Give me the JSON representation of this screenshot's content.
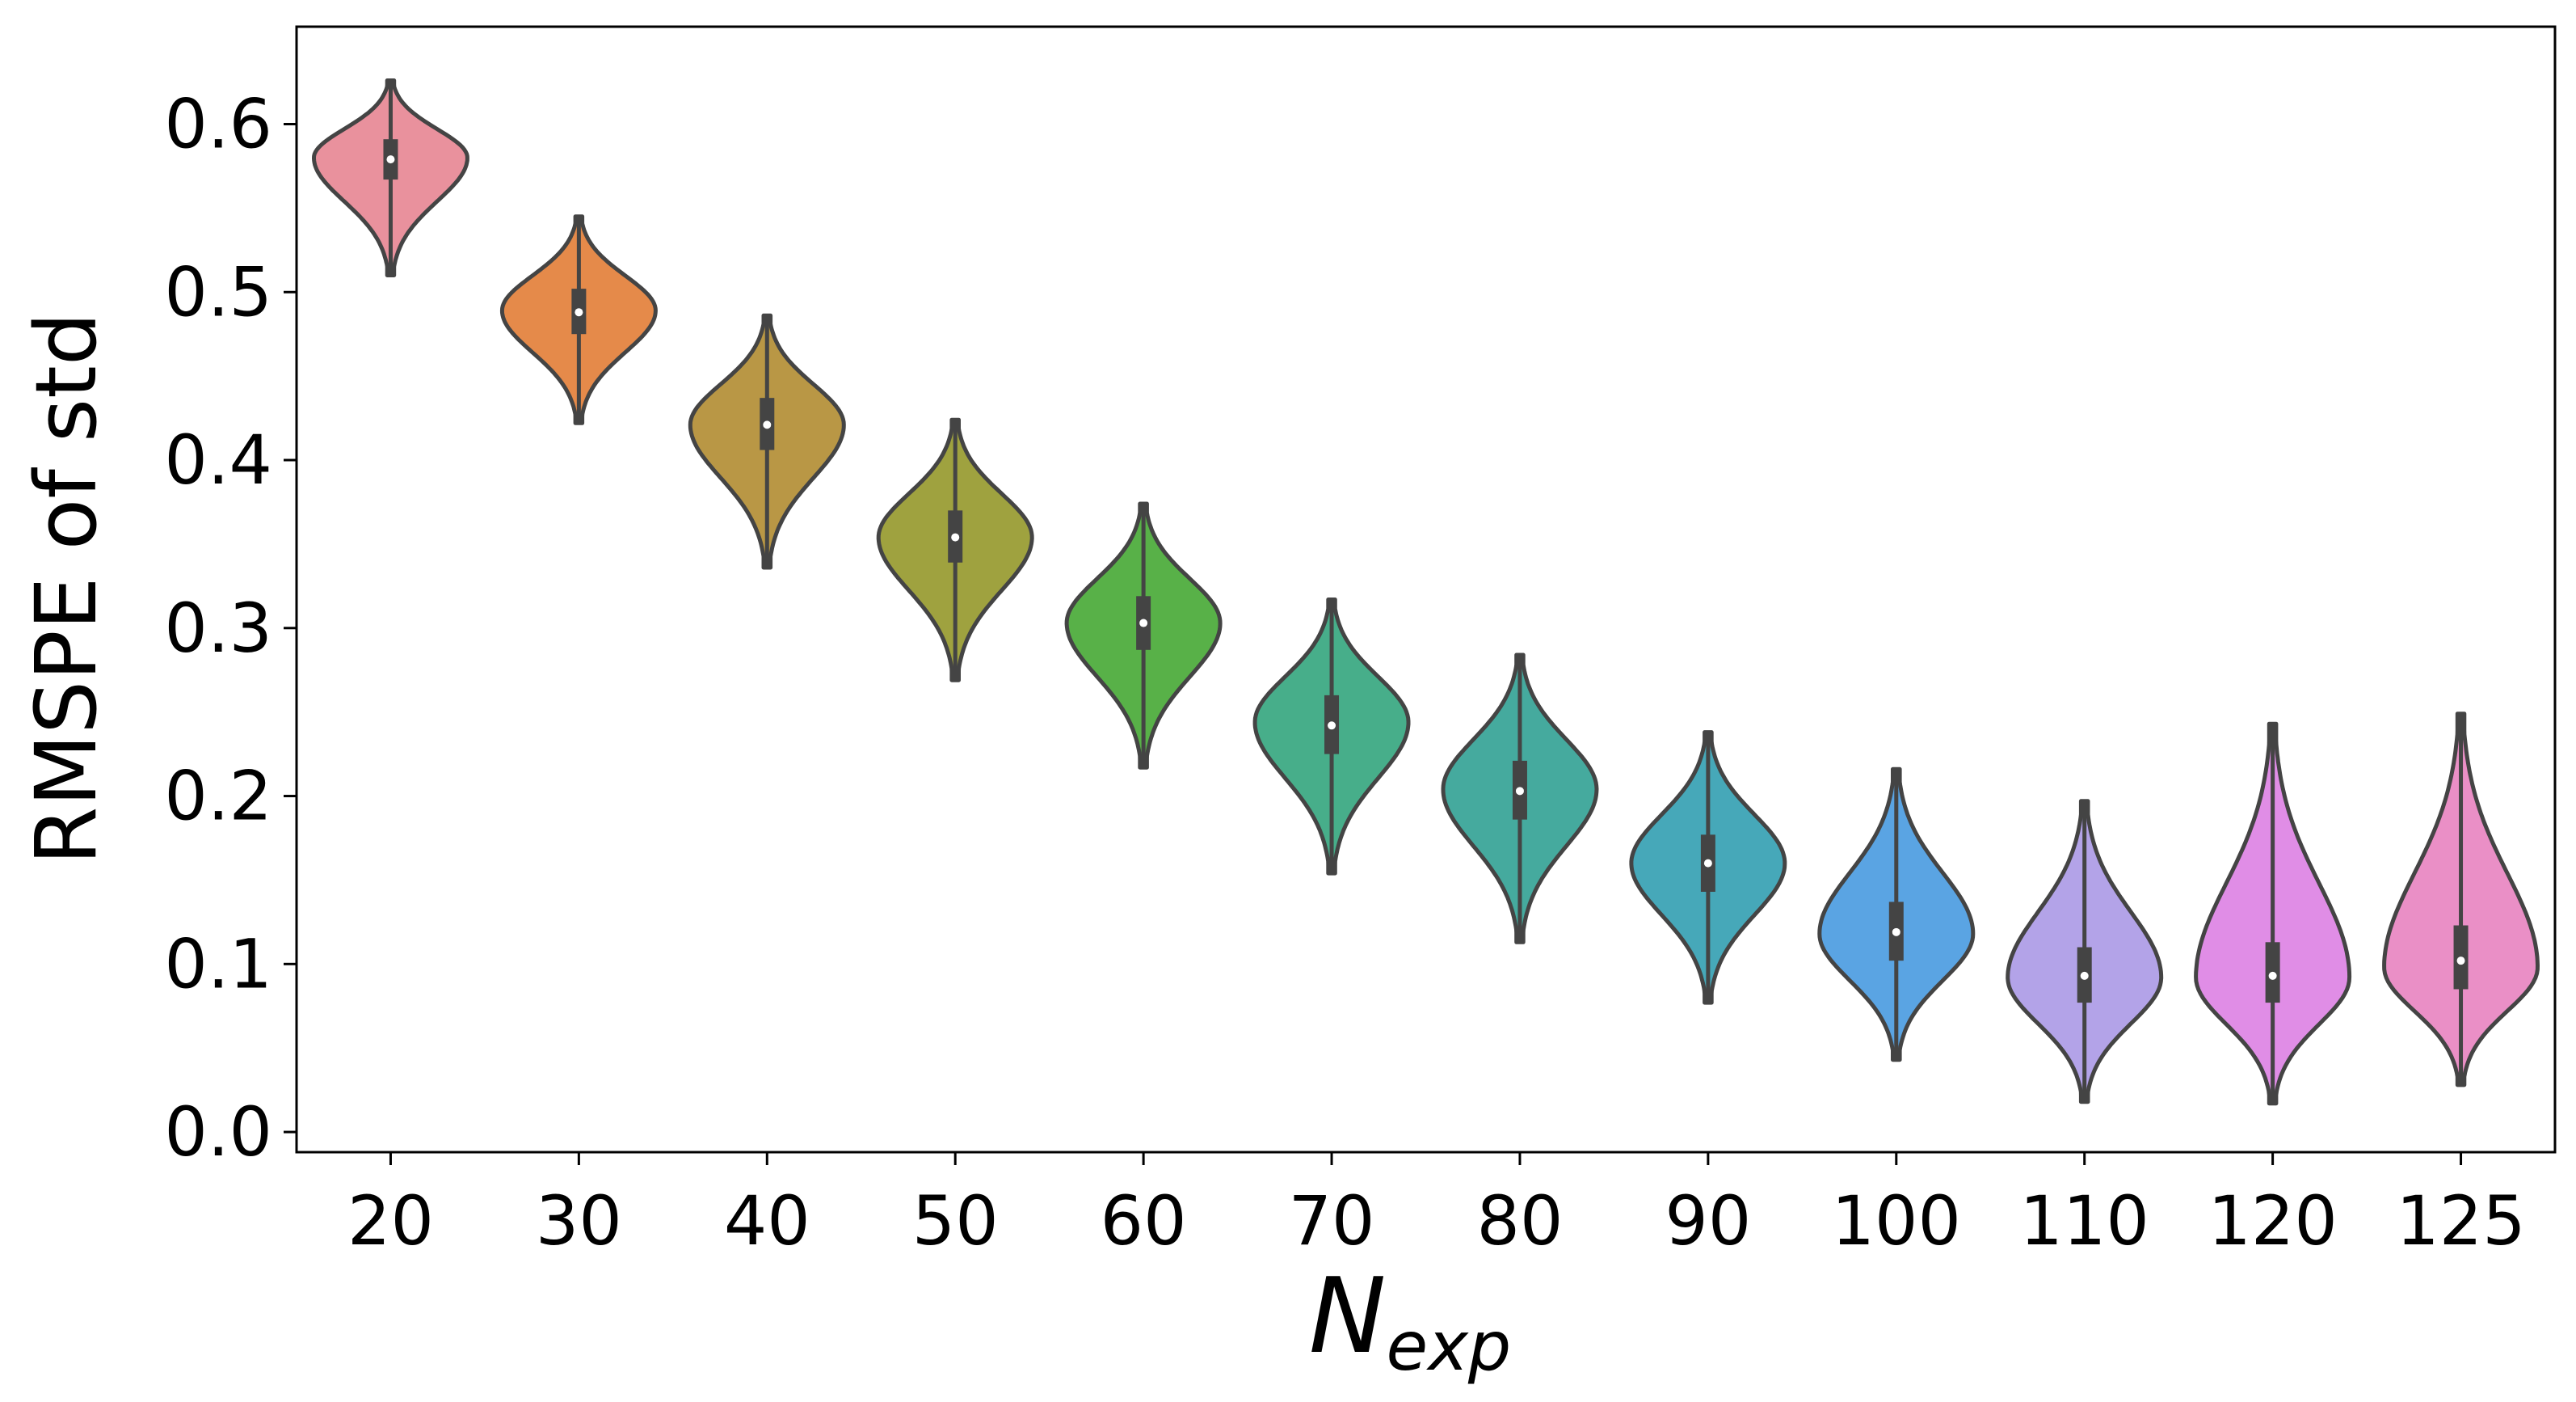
{
  "chart_data": {
    "type": "violin",
    "xlabel": {
      "main": "N",
      "subscript": "exp"
    },
    "ylabel": "RMSPE of std",
    "ylim": [
      -0.012,
      0.658
    ],
    "yticks": [
      "0.0",
      "0.1",
      "0.2",
      "0.3",
      "0.4",
      "0.5",
      "0.6"
    ],
    "grid": false,
    "legend": "none",
    "categories": [
      "20",
      "30",
      "40",
      "50",
      "60",
      "70",
      "80",
      "90",
      "100",
      "110",
      "120",
      "125"
    ],
    "series": [
      {
        "category": "20",
        "color": "#e9919d",
        "min": 0.51,
        "q1": 0.567,
        "median": 0.579,
        "q3": 0.591,
        "max": 0.626,
        "mode": 0.58
      },
      {
        "category": "30",
        "color": "#e58a4a",
        "min": 0.422,
        "q1": 0.475,
        "median": 0.488,
        "q3": 0.502,
        "max": 0.545,
        "mode": 0.489
      },
      {
        "category": "40",
        "color": "#b99745",
        "min": 0.336,
        "q1": 0.406,
        "median": 0.421,
        "q3": 0.437,
        "max": 0.486,
        "mode": 0.421
      },
      {
        "category": "50",
        "color": "#9fa23f",
        "min": 0.269,
        "q1": 0.339,
        "median": 0.354,
        "q3": 0.37,
        "max": 0.424,
        "mode": 0.354
      },
      {
        "category": "60",
        "color": "#58b148",
        "min": 0.217,
        "q1": 0.287,
        "median": 0.303,
        "q3": 0.319,
        "max": 0.374,
        "mode": 0.303
      },
      {
        "category": "70",
        "color": "#47ae8a",
        "min": 0.154,
        "q1": 0.225,
        "median": 0.242,
        "q3": 0.26,
        "max": 0.317,
        "mode": 0.244
      },
      {
        "category": "80",
        "color": "#45aa9e",
        "min": 0.113,
        "q1": 0.186,
        "median": 0.203,
        "q3": 0.221,
        "max": 0.284,
        "mode": 0.204
      },
      {
        "category": "90",
        "color": "#46a8b9",
        "min": 0.077,
        "q1": 0.143,
        "median": 0.16,
        "q3": 0.177,
        "max": 0.238,
        "mode": 0.16
      },
      {
        "category": "100",
        "color": "#5aa4e3",
        "min": 0.043,
        "q1": 0.102,
        "median": 0.119,
        "q3": 0.137,
        "max": 0.216,
        "mode": 0.118
      },
      {
        "category": "110",
        "color": "#b3a3e8",
        "min": 0.018,
        "q1": 0.077,
        "median": 0.093,
        "q3": 0.11,
        "max": 0.197,
        "mode": 0.092
      },
      {
        "category": "120",
        "color": "#e08de6",
        "min": 0.017,
        "q1": 0.077,
        "median": 0.093,
        "q3": 0.113,
        "max": 0.243,
        "mode": 0.092
      },
      {
        "category": "125",
        "color": "#ea8fc6",
        "min": 0.028,
        "q1": 0.085,
        "median": 0.102,
        "q3": 0.123,
        "max": 0.249,
        "mode": 0.098
      }
    ]
  }
}
